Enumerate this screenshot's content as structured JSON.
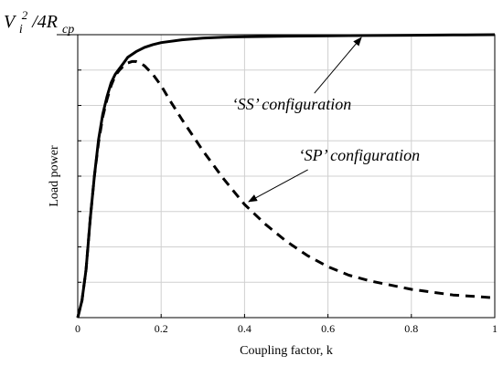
{
  "chart_data": {
    "type": "line",
    "xlabel": "Coupling factor, k",
    "ylabel": "Load power",
    "xlim": [
      0,
      1
    ],
    "ylim": [
      0,
      1.0
    ],
    "x_ticks": [
      0,
      0.2,
      0.4,
      0.6,
      0.8,
      1
    ],
    "x_tick_labels": [
      "0",
      "0.2",
      "0.4",
      "0.6",
      "0.8",
      "1"
    ],
    "y_tick_count": 8,
    "grid": true,
    "reference_line": {
      "y": 1.0,
      "label_parts": [
        "V",
        "i",
        "2",
        "/4R",
        "cp"
      ]
    },
    "series": [
      {
        "name": "‘SS’ configuration",
        "style": "solid",
        "x": [
          0,
          0.01,
          0.02,
          0.03,
          0.04,
          0.05,
          0.06,
          0.07,
          0.08,
          0.09,
          0.1,
          0.11,
          0.12,
          0.14,
          0.16,
          0.18,
          0.2,
          0.25,
          0.3,
          0.35,
          0.4,
          0.5,
          0.6,
          0.7,
          0.8,
          0.9,
          1.0
        ],
        "y": [
          0,
          0.06,
          0.17,
          0.35,
          0.5,
          0.63,
          0.72,
          0.78,
          0.83,
          0.86,
          0.88,
          0.9,
          0.92,
          0.94,
          0.955,
          0.965,
          0.972,
          0.982,
          0.988,
          0.991,
          0.993,
          0.995,
          0.996,
          0.997,
          0.998,
          0.999,
          1.0
        ]
      },
      {
        "name": "‘SP’ configuration",
        "style": "dashed",
        "x": [
          0,
          0.01,
          0.02,
          0.03,
          0.04,
          0.05,
          0.06,
          0.07,
          0.08,
          0.09,
          0.1,
          0.11,
          0.12,
          0.13,
          0.14,
          0.15,
          0.16,
          0.18,
          0.2,
          0.22,
          0.25,
          0.3,
          0.35,
          0.4,
          0.45,
          0.5,
          0.55,
          0.6,
          0.65,
          0.7,
          0.8,
          0.9,
          1.0
        ],
        "y": [
          0,
          0.06,
          0.17,
          0.35,
          0.5,
          0.62,
          0.71,
          0.77,
          0.82,
          0.855,
          0.875,
          0.89,
          0.9,
          0.905,
          0.905,
          0.9,
          0.89,
          0.86,
          0.82,
          0.77,
          0.7,
          0.59,
          0.49,
          0.4,
          0.33,
          0.27,
          0.22,
          0.18,
          0.15,
          0.13,
          0.1,
          0.08,
          0.07
        ]
      }
    ],
    "annotations": [
      {
        "text": "‘SS’ configuration",
        "target_series": 0,
        "text_x": 0.37,
        "text_y": 0.735,
        "arrow_to_x": 0.68,
        "arrow_to_y": 0.99
      },
      {
        "text": "‘SP’ configuration",
        "target_series": 1,
        "text_x": 0.53,
        "text_y": 0.555,
        "arrow_to_x": 0.41,
        "arrow_to_y": 0.41
      }
    ]
  }
}
